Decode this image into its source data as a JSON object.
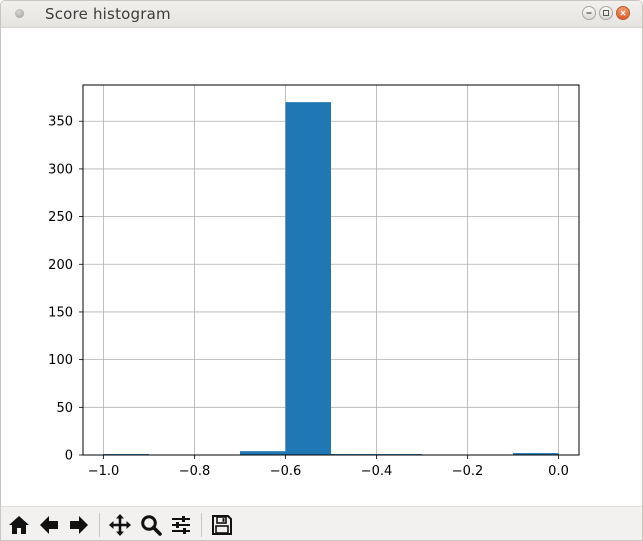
{
  "window": {
    "title": "Score histogram"
  },
  "colors": {
    "bar": "#1f77b4",
    "grid": "#b0b0b0",
    "axis": "#000000"
  },
  "toolbar": {
    "buttons": [
      {
        "name": "home",
        "icon": "home-icon"
      },
      {
        "name": "back",
        "icon": "arrow-left-icon"
      },
      {
        "name": "forward",
        "icon": "arrow-right-icon"
      },
      {
        "name": "pan",
        "icon": "move-icon"
      },
      {
        "name": "zoom",
        "icon": "magnifier-icon"
      },
      {
        "name": "subplots",
        "icon": "sliders-icon"
      },
      {
        "name": "save",
        "icon": "floppy-disk-icon"
      }
    ]
  },
  "chart_data": {
    "type": "bar",
    "title": "",
    "xlabel": "",
    "ylabel": "",
    "xlim": [
      -1.045,
      0.045
    ],
    "ylim": [
      0,
      388
    ],
    "grid": true,
    "bins": [
      {
        "x0": -1.0,
        "x1": -0.9,
        "value": 1
      },
      {
        "x0": -0.9,
        "x1": -0.8,
        "value": 0
      },
      {
        "x0": -0.8,
        "x1": -0.7,
        "value": 0
      },
      {
        "x0": -0.7,
        "x1": -0.6,
        "value": 4
      },
      {
        "x0": -0.6,
        "x1": -0.5,
        "value": 370
      },
      {
        "x0": -0.5,
        "x1": -0.4,
        "value": 1
      },
      {
        "x0": -0.4,
        "x1": -0.3,
        "value": 1
      },
      {
        "x0": -0.3,
        "x1": -0.2,
        "value": 0
      },
      {
        "x0": -0.2,
        "x1": -0.1,
        "value": 0
      },
      {
        "x0": -0.1,
        "x1": 0.0,
        "value": 2
      }
    ],
    "xticks": [
      -1.0,
      -0.8,
      -0.6,
      -0.4,
      -0.2,
      0.0
    ],
    "xtick_labels": [
      "−1.0",
      "−0.8",
      "−0.6",
      "−0.4",
      "−0.2",
      "0.0"
    ],
    "yticks": [
      0,
      50,
      100,
      150,
      200,
      250,
      300,
      350
    ],
    "ytick_labels": [
      "0",
      "50",
      "100",
      "150",
      "200",
      "250",
      "300",
      "350"
    ]
  }
}
